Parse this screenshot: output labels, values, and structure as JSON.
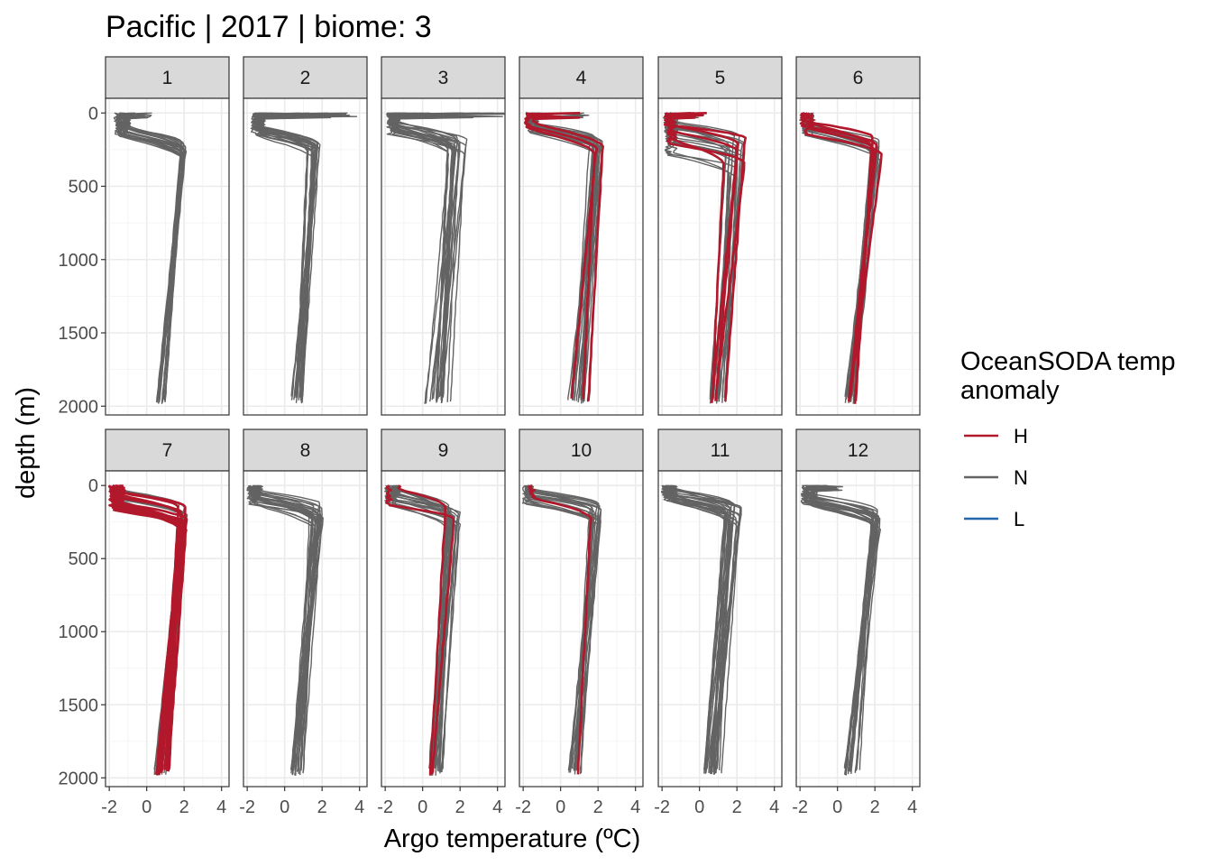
{
  "chart_data": {
    "type": "line",
    "title": "Pacific | 2017 | biome: 3",
    "xlabel": "Argo temperature (ºC)",
    "ylabel": "depth (m)",
    "xlim": [
      -2.2,
      4.4
    ],
    "ylim": [
      2060,
      -100
    ],
    "x_ticks": [
      -2,
      0,
      2,
      4
    ],
    "x_tick_labels": [
      "-2",
      "0",
      "2",
      "4"
    ],
    "y_ticks": [
      0,
      500,
      1000,
      1500,
      2000
    ],
    "y_tick_labels": [
      "0",
      "500",
      "1000",
      "1500",
      "2000"
    ],
    "grid": true,
    "facet_by": "month",
    "panels": [
      "1",
      "2",
      "3",
      "4",
      "5",
      "6",
      "7",
      "8",
      "9",
      "10",
      "11",
      "12"
    ],
    "legend": {
      "title": "OceanSODA temp anomaly",
      "position": "right",
      "entries": [
        {
          "label": "H",
          "color": "#b2182b"
        },
        {
          "label": "N",
          "color": "#636363"
        },
        {
          "label": "L",
          "color": "#2166ac"
        }
      ]
    },
    "panel_profiles": [
      {
        "month": "1",
        "n": 22,
        "h": 0,
        "surf": [
          -1.6,
          0.4
        ],
        "mld": [
          90,
          170
        ],
        "tmax": [
          1.8,
          2.1
        ],
        "deep": [
          0.5,
          1.0
        ],
        "mixed_surface": true
      },
      {
        "month": "2",
        "n": 22,
        "h": 0,
        "surf": [
          -1.7,
          4.2
        ],
        "mld": [
          90,
          160
        ],
        "tmax": [
          1.2,
          1.9
        ],
        "deep": [
          0.3,
          1.0
        ],
        "mixed_surface": true
      },
      {
        "month": "3",
        "n": 22,
        "h": 0,
        "surf": [
          -1.8,
          4.4
        ],
        "mld": [
          60,
          150
        ],
        "tmax": [
          1.3,
          2.4
        ],
        "deep": [
          0.1,
          1.6
        ],
        "mixed_surface": true
      },
      {
        "month": "4",
        "n": 20,
        "h": 3,
        "surf": [
          -1.8,
          1.6
        ],
        "mld": [
          60,
          140
        ],
        "tmax": [
          1.5,
          2.3
        ],
        "deep": [
          0.4,
          1.6
        ],
        "mixed_surface": true
      },
      {
        "month": "5",
        "n": 18,
        "h": 5,
        "surf": [
          -1.8,
          0.5
        ],
        "mld": [
          50,
          300
        ],
        "tmax": [
          1.2,
          2.5
        ],
        "deep": [
          0.5,
          1.9
        ],
        "mixed_surface": true
      },
      {
        "month": "6",
        "n": 18,
        "h": 5,
        "surf": [
          -1.9,
          -0.5
        ],
        "mld": [
          50,
          160
        ],
        "tmax": [
          1.8,
          2.4
        ],
        "deep": [
          0.4,
          1.0
        ],
        "mixed_surface": false
      },
      {
        "month": "7",
        "n": 16,
        "h": 14,
        "surf": [
          -1.9,
          -1.2
        ],
        "mld": [
          20,
          180
        ],
        "tmax": [
          1.7,
          2.2
        ],
        "deep": [
          0.4,
          1.2
        ],
        "mixed_surface": false
      },
      {
        "month": "8",
        "n": 24,
        "h": 0,
        "surf": [
          -1.9,
          -1.0
        ],
        "mld": [
          30,
          140
        ],
        "tmax": [
          1.3,
          2.1
        ],
        "deep": [
          0.3,
          1.0
        ],
        "mixed_surface": false
      },
      {
        "month": "9",
        "n": 22,
        "h": 2,
        "surf": [
          -1.9,
          -1.3
        ],
        "mld": [
          20,
          140
        ],
        "tmax": [
          1.2,
          2.0
        ],
        "deep": [
          0.3,
          1.2
        ],
        "mixed_surface": false
      },
      {
        "month": "10",
        "n": 18,
        "h": 1,
        "surf": [
          -1.9,
          -1.5
        ],
        "mld": [
          20,
          140
        ],
        "tmax": [
          1.5,
          2.2
        ],
        "deep": [
          0.4,
          1.2
        ],
        "mixed_surface": false
      },
      {
        "month": "11",
        "n": 26,
        "h": 0,
        "surf": [
          -1.9,
          -1.0
        ],
        "mld": [
          10,
          120
        ],
        "tmax": [
          1.3,
          2.3
        ],
        "deep": [
          0.2,
          1.2
        ],
        "mixed_surface": false
      },
      {
        "month": "12",
        "n": 22,
        "h": 0,
        "surf": [
          -1.8,
          0.4
        ],
        "mld": [
          60,
          150
        ],
        "tmax": [
          1.8,
          2.3
        ],
        "deep": [
          0.3,
          1.2
        ],
        "mixed_surface": true
      }
    ]
  }
}
